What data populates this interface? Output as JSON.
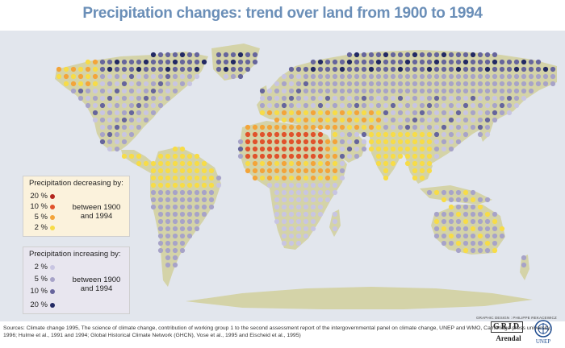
{
  "title": "Precipitation changes: trend over land from 1900 to 1994",
  "colors": {
    "ocean": "#e2e6ed",
    "land": "#d4d3a8",
    "dec_20": "#b3261e",
    "dec_10": "#e0522b",
    "dec_5": "#f3a43a",
    "dec_2": "#f7dc47",
    "inc_2": "#c8c5e2",
    "inc_5": "#a7a3c8",
    "inc_10": "#66659c",
    "inc_20": "#232a64"
  },
  "legend_decreasing": {
    "title": "Precipitation decreasing by:",
    "items": [
      {
        "label": "20 %",
        "color": "#b3261e"
      },
      {
        "label": "10 %",
        "color": "#e0522b"
      },
      {
        "label": "5 %",
        "color": "#f3a43a"
      },
      {
        "label": "2 %",
        "color": "#f7dc47"
      }
    ],
    "period": "between 1900 and 1994"
  },
  "legend_increasing": {
    "title": "Precipitation increasing by:",
    "items": [
      {
        "label": "2 %",
        "color": "#c8c5e2"
      },
      {
        "label": "5 %",
        "color": "#a7a3c8"
      },
      {
        "label": "10 %",
        "color": "#66659c"
      },
      {
        "label": "20 %",
        "color": "#232a64"
      }
    ],
    "period": "between 1900 and 1994"
  },
  "credit": "GRAPHIC DESIGN : PHILIPPE REKACEWICZ",
  "logos": {
    "grid_text": "GRID",
    "grid_sub": "Arendal",
    "unep_text": "UNEP"
  },
  "sources": "Sources: Climate change 1995, The science of climate change, contribution of working group 1 to the second assessment report of the intergovernmental panel on climate change, UNEP and WMO, Cambridge press university, 1996; Hulme et al., 1991 and 1994; Global Historical Climate Network (GHCN), Vose et al., 1995 and Eischeid et al., 1995)"
}
